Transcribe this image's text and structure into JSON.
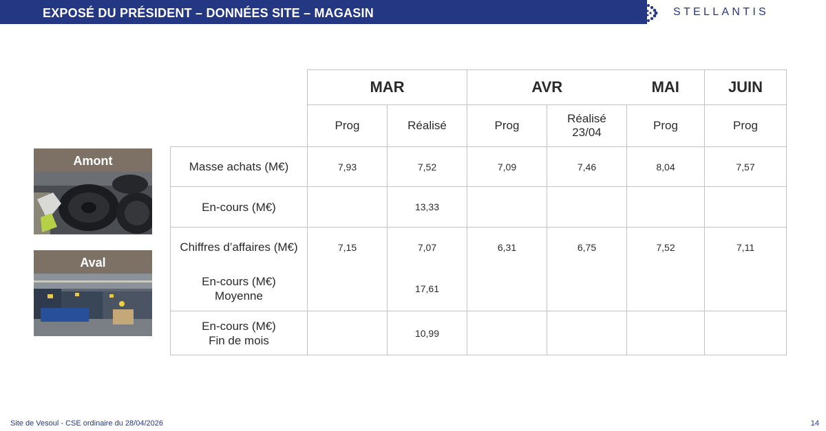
{
  "header": {
    "title": "EXPOSÉ DU PRÉSIDENT – DONNÉES SITE – MAGASIN",
    "logo_text": "STELLANTIS",
    "accent_color": "#243782"
  },
  "side": {
    "amont_label": "Amont",
    "aval_label": "Aval"
  },
  "table": {
    "months": [
      "MAR",
      "AVR",
      "MAI",
      "JUIN"
    ],
    "subheaders": [
      "Prog",
      "Réalisé",
      "Prog",
      "Réalisé\n23/04",
      "Prog",
      "Prog"
    ],
    "rows": [
      {
        "label": "Masse achats (M€)",
        "values": [
          "7,93",
          "7,52",
          "7,09",
          "7,46",
          "8,04",
          "7,57"
        ]
      },
      {
        "label": "En-cours (M€)",
        "values": [
          "",
          "13,33",
          "",
          "",
          "",
          ""
        ]
      },
      {
        "label": "Chiffres d’affaires (M€)",
        "values": [
          "7,15",
          "7,07",
          "6,31",
          "6,75",
          "7,52",
          "7,11"
        ]
      },
      {
        "label": "En-cours (M€)\nMoyenne",
        "values": [
          "",
          "17,61",
          "",
          "",
          "",
          ""
        ]
      },
      {
        "label": "En-cours (M€)\nFin de mois",
        "values": [
          "",
          "10,99",
          "",
          "",
          "",
          ""
        ]
      }
    ]
  },
  "footer": {
    "site": "Site de Vesoul - CSE ordinaire du 28/04/2026",
    "page_number": "14"
  }
}
